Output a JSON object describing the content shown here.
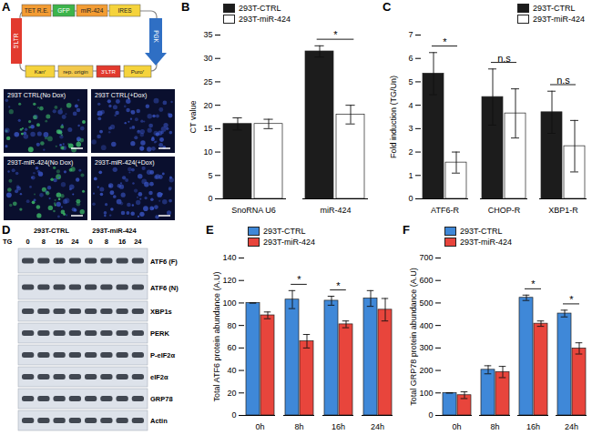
{
  "chart_data": [
    {
      "title": "B",
      "type": "bar",
      "ylabel": "CT value",
      "categories": [
        "SnoRNA U6",
        "miR-424"
      ],
      "series": [
        {
          "name": "293T-CTRL",
          "color": "#1c1c1c",
          "values": [
            16,
            31.5
          ],
          "errors": [
            1.3,
            1.2
          ]
        },
        {
          "name": "293T-miR-424",
          "color": "#ffffff",
          "values": [
            16,
            18
          ],
          "errors": [
            1,
            2
          ]
        }
      ],
      "ylim": [
        0,
        35
      ],
      "yticks": [
        0,
        5,
        10,
        15,
        20,
        25,
        30,
        35
      ],
      "annotations": [
        {
          "category": "miR-424",
          "text": "*"
        }
      ],
      "legend": "top-left"
    },
    {
      "title": "C",
      "type": "bar",
      "ylabel": "Fold induction (TG/Un)",
      "categories": [
        "ATF6-R",
        "CHOP-R",
        "XBP1-R"
      ],
      "series": [
        {
          "name": "293T-CTRL",
          "color": "#1c1c1c",
          "values": [
            5.35,
            4.35,
            3.7
          ],
          "errors": [
            0.9,
            1.2,
            0.9
          ]
        },
        {
          "name": "293T-miR-424",
          "color": "#ffffff",
          "values": [
            1.55,
            3.65,
            2.25
          ],
          "errors": [
            0.45,
            1.05,
            1.1
          ]
        }
      ],
      "ylim": [
        0,
        7
      ],
      "yticks": [
        0,
        1,
        2,
        3,
        4,
        5,
        6,
        7
      ],
      "annotations": [
        {
          "category": "ATF6-R",
          "text": "*"
        },
        {
          "category": "CHOP-R",
          "text": "n.s"
        },
        {
          "category": "XBP1-R",
          "text": "n.s"
        }
      ],
      "legend": "top-right"
    },
    {
      "title": "E",
      "type": "bar",
      "ylabel": "Total ATF6 protein abundance (A.U)",
      "categories": [
        "0h",
        "8h",
        "16h",
        "24h"
      ],
      "series": [
        {
          "name": "293T-CTRL",
          "color": "#3f88d8",
          "values": [
            100,
            103,
            102,
            104
          ],
          "errors": [
            0,
            8,
            4,
            7
          ]
        },
        {
          "name": "293T-miR-424",
          "color": "#e8453c",
          "values": [
            89,
            66,
            81,
            94
          ],
          "errors": [
            3,
            6,
            3,
            10
          ]
        }
      ],
      "ylim": [
        0,
        140
      ],
      "yticks": [
        0,
        20,
        40,
        60,
        80,
        100,
        120,
        140
      ],
      "annotations": [
        {
          "category": "8h",
          "text": "*"
        },
        {
          "category": "16h",
          "text": "*"
        }
      ],
      "legend": "top-left"
    },
    {
      "title": "F",
      "type": "bar",
      "ylabel": "Total GRP78 protein abundance (A.U)",
      "categories": [
        "0h",
        "8h",
        "16h",
        "24h"
      ],
      "series": [
        {
          "name": "293T-CTRL",
          "color": "#3f88d8",
          "values": [
            100,
            203,
            523,
            453
          ],
          "errors": [
            0,
            18,
            12,
            15
          ]
        },
        {
          "name": "293T-miR-424",
          "color": "#e8453c",
          "values": [
            90,
            193,
            408,
            298
          ],
          "errors": [
            15,
            25,
            12,
            25
          ]
        }
      ],
      "ylim": [
        0,
        700
      ],
      "yticks": [
        0,
        100,
        200,
        300,
        400,
        500,
        600,
        700
      ],
      "annotations": [
        {
          "category": "16h",
          "text": "*"
        },
        {
          "category": "24h",
          "text": "*"
        }
      ],
      "legend": "top-left"
    }
  ],
  "panel_A": {
    "title": "A",
    "vector": {
      "top": [
        "TET R.E.",
        "GFP",
        "miR-424",
        "IRES"
      ],
      "left": "5'LTR",
      "right": "PGK",
      "bottom": [
        "Kanʳ",
        "rep. origin",
        "3'LTR",
        "Puroʳ"
      ]
    },
    "images": [
      "293T CTRL(No Dox)",
      "293T CTRL(+Dox)",
      "293T-miR-424(No Dox)",
      "293T-miR-424(+Dox)"
    ]
  },
  "panel_D": {
    "title": "D",
    "treatment": "TG",
    "groups": [
      {
        "name": "293T-CTRL",
        "times": [
          0,
          8,
          16,
          24
        ]
      },
      {
        "name": "293T-miR-424",
        "times": [
          0,
          8,
          16,
          24
        ]
      }
    ],
    "bands": [
      "ATF6 (F)",
      "ATF6 (N)",
      "XBP1s",
      "PERK",
      "P-eIF2α",
      "eIF2α",
      "GRP78",
      "Actin"
    ]
  }
}
